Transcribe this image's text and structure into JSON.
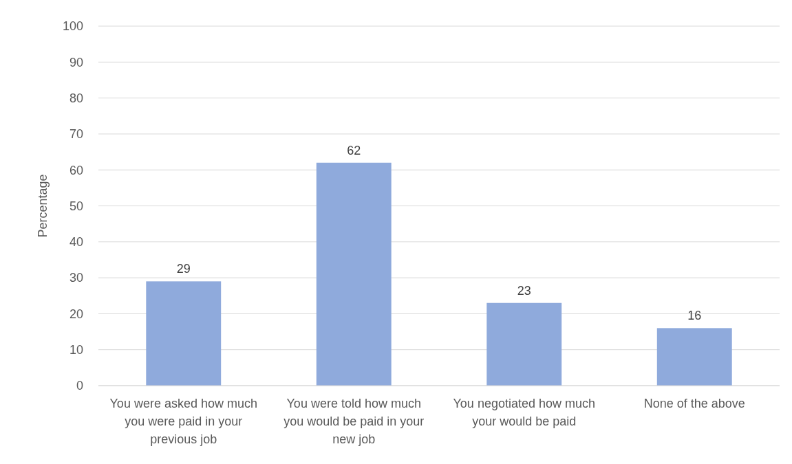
{
  "chart_data": {
    "type": "bar",
    "ylabel": "Percentage",
    "categories": [
      "You were asked how much you were paid in your previous job",
      "You were told how much you would be paid in your new job",
      "You negotiated how much your would be paid",
      "None of the above"
    ],
    "values": [
      29,
      62,
      23,
      16
    ],
    "color": "#8faadc",
    "ylim": [
      0,
      100
    ],
    "yticks": [
      0,
      10,
      20,
      30,
      40,
      50,
      60,
      70,
      80,
      90,
      100
    ],
    "grid": "y",
    "data_labels": true
  }
}
